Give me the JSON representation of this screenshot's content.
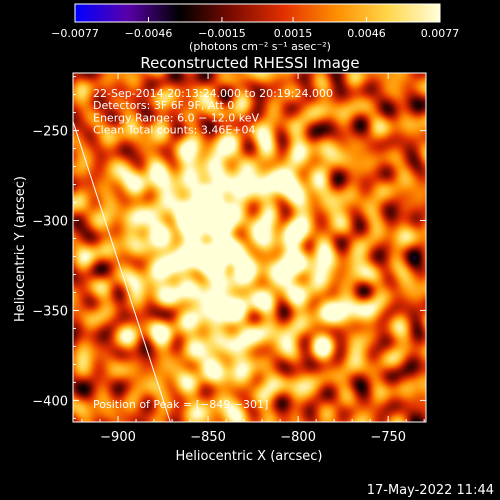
{
  "chart_data": {
    "type": "heatmap",
    "title": "Reconstructed RHESSI Image",
    "xlabel": "Heliocentric X (arcsec)",
    "ylabel": "Heliocentric Y (arcsec)",
    "xlim": [
      -925,
      -729
    ],
    "ylim": [
      -412,
      -218
    ],
    "xticks": [
      -900,
      -850,
      -800,
      -750
    ],
    "xtick_labels": [
      "−900",
      "−850",
      "−800",
      "−750"
    ],
    "yticks": [
      -250,
      -300,
      -350,
      -400
    ],
    "ytick_labels": [
      "−250",
      "−300",
      "−350",
      "−400"
    ],
    "colorbar": {
      "range": [
        -0.0077,
        0.0077
      ],
      "ticks": [
        -0.0077,
        -0.0046,
        -0.0015,
        0.0015,
        0.0046,
        0.0077
      ],
      "tick_labels": [
        "−0.0077",
        "−0.0046",
        "−0.0015",
        "0.0015",
        "0.0046",
        "0.0077"
      ],
      "unit_label": "(photons cm⁻² s⁻¹ asec⁻²)",
      "stops": [
        "#0000ff",
        "#5a00aa",
        "#000000",
        "#7a0b00",
        "#e23000",
        "#ff8d00",
        "#ffd64a",
        "#ffffd8"
      ]
    },
    "annotations": [
      "22-Sep-2014 20:13:24.000 to 20:19:24.000",
      "Detectors: 3F 6F 9F, Att 0",
      "Energy Range: 6.0 − 12.0 keV",
      "Clean     Total counts: 3.46E+04"
    ],
    "peak_label": "Position of Peak = [−849,−301]",
    "peak": [
      -849,
      -301
    ],
    "sources": [
      {
        "x": -849,
        "y": -301,
        "amp": 0.0077,
        "sigma": 9
      },
      {
        "x": -842,
        "y": -322,
        "amp": 0.0068,
        "sigma": 10
      },
      {
        "x": -803,
        "y": -322,
        "amp": 0.0064,
        "sigma": 10
      },
      {
        "x": -846,
        "y": -279,
        "amp": 0.005,
        "sigma": 14
      },
      {
        "x": -806,
        "y": -279,
        "amp": 0.0046,
        "sigma": 14
      },
      {
        "x": -870,
        "y": -325,
        "amp": 0.0046,
        "sigma": 13
      },
      {
        "x": -840,
        "y": -350,
        "amp": 0.0042,
        "sigma": 15
      },
      {
        "x": -880,
        "y": -290,
        "amp": 0.0034,
        "sigma": 18
      },
      {
        "x": -778,
        "y": -350,
        "amp": 0.003,
        "sigma": 15
      },
      {
        "x": -845,
        "y": -385,
        "amp": 0.0028,
        "sigma": 20
      }
    ],
    "limb_line": [
      [
        -925,
        -245
      ],
      [
        -871,
        -412
      ]
    ],
    "timestamp": "17-May-2022 11:44"
  }
}
